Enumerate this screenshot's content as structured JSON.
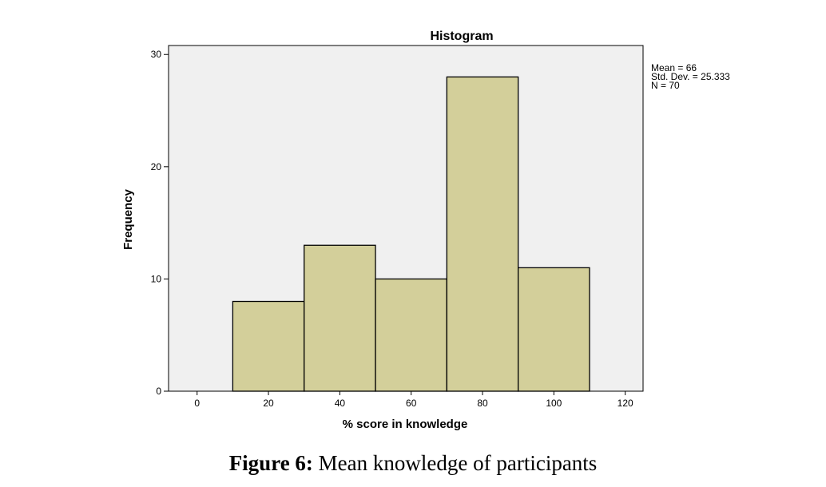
{
  "chart_data": {
    "type": "bar",
    "title": "Histogram",
    "xlabel": "% score in knowledge",
    "ylabel": "Frequency",
    "bins": [
      {
        "from": 10,
        "to": 30,
        "count": 8
      },
      {
        "from": 30,
        "to": 50,
        "count": 13
      },
      {
        "from": 50,
        "to": 70,
        "count": 10
      },
      {
        "from": 70,
        "to": 90,
        "count": 28
      },
      {
        "from": 90,
        "to": 110,
        "count": 11
      }
    ],
    "xlim": [
      -8,
      125
    ],
    "ylim": [
      0,
      30.8
    ],
    "xticks": [
      "0",
      "20",
      "40",
      "60",
      "80",
      "100",
      "120"
    ],
    "yticks": [
      "0",
      "10",
      "20",
      "30"
    ],
    "bar_color": "#d3cf9a",
    "plot_background": "#f0f0f0",
    "stats": [
      "Mean = 66",
      "Std. Dev. = 25.333",
      "N = 70"
    ]
  },
  "caption": {
    "label": "Figure 6:",
    "text": " Mean knowledge of participants"
  }
}
